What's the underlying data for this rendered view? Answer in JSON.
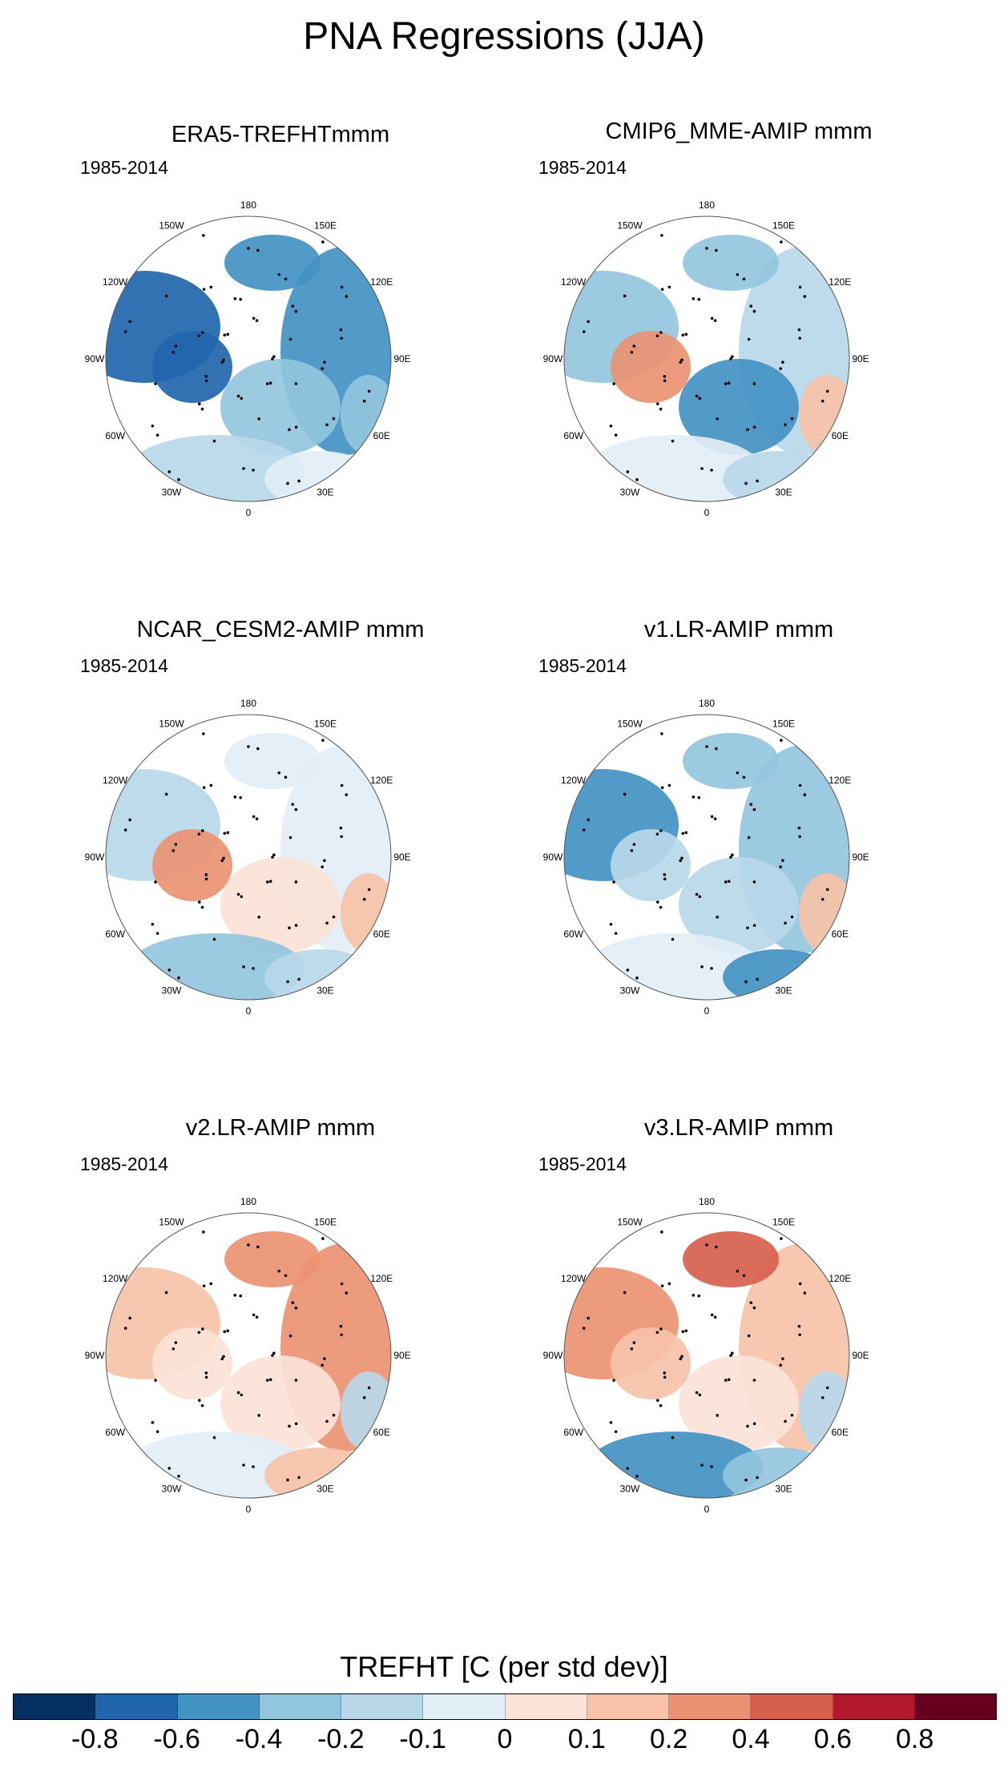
{
  "title": "PNA Regressions (JJA)",
  "panels": [
    {
      "title": "ERA5-TREFHTmmm",
      "period": "1985-2014"
    },
    {
      "title": "CMIP6_MME-AMIP  mmm",
      "period": "1985-2014"
    },
    {
      "title": "NCAR_CESM2-AMIP  mmm",
      "period": "1985-2014"
    },
    {
      "title": "v1.LR-AMIP  mmm",
      "period": "1985-2014"
    },
    {
      "title": "v2.LR-AMIP  mmm",
      "period": "1985-2014"
    },
    {
      "title": "v3.LR-AMIP  mmm",
      "period": "1985-2014"
    }
  ],
  "lon_labels": [
    "180",
    "150E",
    "120E",
    "90E",
    "60E",
    "30E",
    "0",
    "30W",
    "60W",
    "90W",
    "120W",
    "150W"
  ],
  "colorbar": {
    "title": "TREFHT [C (per std dev)]",
    "labels": [
      "-0.8",
      "-0.6",
      "-0.4",
      "-0.2",
      "-0.1",
      "0",
      "0.1",
      "0.2",
      "0.4",
      "0.6",
      "0.8"
    ],
    "colors": [
      "#053061",
      "#2166ac",
      "#4393c3",
      "#92c5de",
      "#b8d8ea",
      "#e2eef6",
      "#fbe3d7",
      "#f7c2a8",
      "#eb9272",
      "#d6604d",
      "#b2182b",
      "#67001f"
    ]
  }
}
